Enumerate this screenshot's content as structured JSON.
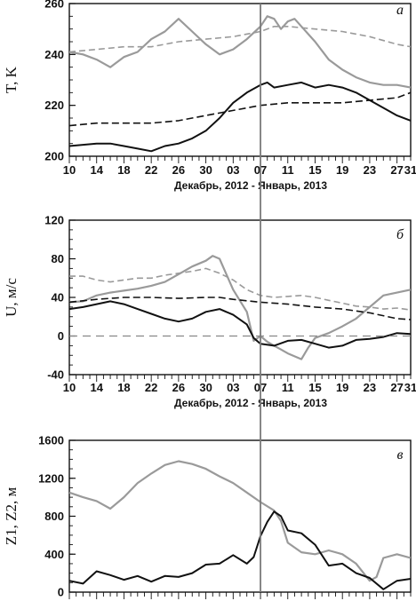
{
  "chart_data": [
    {
      "type": "line",
      "panel_label": "а",
      "ylabel": "T, K",
      "ylim": [
        200,
        260
      ],
      "yticks": [
        200,
        220,
        240,
        260
      ],
      "xtick_labels": [
        "10",
        "14",
        "18",
        "22",
        "26",
        "30",
        "03",
        "07",
        "11",
        "15",
        "19",
        "23",
        "27",
        "31"
      ],
      "xlabel": "Декабрь, 2012 - Январь, 2013",
      "event_day": 28,
      "series": [
        {
          "style": "gray-solid",
          "points": [
            [
              0,
              241
            ],
            [
              2,
              240
            ],
            [
              4,
              238
            ],
            [
              6,
              235
            ],
            [
              8,
              239
            ],
            [
              10,
              241
            ],
            [
              12,
              246
            ],
            [
              14,
              249
            ],
            [
              16,
              254
            ],
            [
              18,
              249
            ],
            [
              20,
              244
            ],
            [
              22,
              240
            ],
            [
              24,
              242
            ],
            [
              26,
              246
            ],
            [
              28,
              251
            ],
            [
              29,
              255
            ],
            [
              30,
              254
            ],
            [
              31,
              250
            ],
            [
              32,
              253
            ],
            [
              33,
              254
            ],
            [
              34,
              251
            ],
            [
              36,
              245
            ],
            [
              38,
              238
            ],
            [
              40,
              234
            ],
            [
              42,
              231
            ],
            [
              44,
              229
            ],
            [
              46,
              228
            ],
            [
              48,
              228
            ],
            [
              50,
              227
            ]
          ]
        },
        {
          "style": "gray-dashed",
          "points": [
            [
              0,
              241
            ],
            [
              4,
              242
            ],
            [
              8,
              243
            ],
            [
              12,
              243
            ],
            [
              16,
              245
            ],
            [
              20,
              246
            ],
            [
              24,
              247
            ],
            [
              28,
              249
            ],
            [
              30,
              251
            ],
            [
              32,
              251
            ],
            [
              36,
              250
            ],
            [
              40,
              249
            ],
            [
              44,
              247
            ],
            [
              48,
              244
            ],
            [
              50,
              243
            ]
          ]
        },
        {
          "style": "black-solid",
          "points": [
            [
              0,
              204
            ],
            [
              4,
              205
            ],
            [
              6,
              205
            ],
            [
              8,
              204
            ],
            [
              10,
              203
            ],
            [
              12,
              202
            ],
            [
              14,
              204
            ],
            [
              16,
              205
            ],
            [
              18,
              207
            ],
            [
              20,
              210
            ],
            [
              22,
              215
            ],
            [
              24,
              221
            ],
            [
              26,
              225
            ],
            [
              28,
              228
            ],
            [
              29,
              229
            ],
            [
              30,
              227
            ],
            [
              32,
              228
            ],
            [
              34,
              229
            ],
            [
              36,
              227
            ],
            [
              38,
              228
            ],
            [
              40,
              227
            ],
            [
              42,
              225
            ],
            [
              44,
              222
            ],
            [
              46,
              219
            ],
            [
              48,
              216
            ],
            [
              50,
              214
            ]
          ]
        },
        {
          "style": "black-dashed",
          "points": [
            [
              0,
              212
            ],
            [
              4,
              213
            ],
            [
              8,
              213
            ],
            [
              12,
              213
            ],
            [
              16,
              214
            ],
            [
              20,
              216
            ],
            [
              24,
              218
            ],
            [
              28,
              220
            ],
            [
              32,
              221
            ],
            [
              36,
              221
            ],
            [
              40,
              221
            ],
            [
              44,
              222
            ],
            [
              48,
              223
            ],
            [
              50,
              225
            ]
          ]
        }
      ]
    },
    {
      "type": "line",
      "panel_label": "б",
      "ylabel": "U, м/с",
      "ylim": [
        -40,
        120
      ],
      "yticks": [
        -40,
        0,
        40,
        80,
        120
      ],
      "xtick_labels": [
        "10",
        "14",
        "18",
        "22",
        "26",
        "30",
        "03",
        "07",
        "11",
        "15",
        "19",
        "23",
        "27",
        "31"
      ],
      "xlabel": "Декабрь, 2012 - Январь, 2013",
      "event_day": 28,
      "series": [
        {
          "style": "gray-solid",
          "points": [
            [
              0,
              35
            ],
            [
              2,
              36
            ],
            [
              4,
              42
            ],
            [
              6,
              45
            ],
            [
              8,
              47
            ],
            [
              10,
              49
            ],
            [
              12,
              52
            ],
            [
              14,
              56
            ],
            [
              16,
              64
            ],
            [
              18,
              72
            ],
            [
              20,
              78
            ],
            [
              21,
              83
            ],
            [
              22,
              80
            ],
            [
              24,
              48
            ],
            [
              26,
              25
            ],
            [
              27,
              -5
            ],
            [
              28,
              0
            ],
            [
              29,
              -6
            ],
            [
              30,
              -10
            ],
            [
              31,
              -14
            ],
            [
              32,
              -18
            ],
            [
              34,
              -24
            ],
            [
              35,
              -12
            ],
            [
              36,
              -2
            ],
            [
              38,
              3
            ],
            [
              40,
              10
            ],
            [
              42,
              18
            ],
            [
              44,
              30
            ],
            [
              46,
              42
            ],
            [
              48,
              45
            ],
            [
              50,
              48
            ]
          ]
        },
        {
          "style": "gray-dashed",
          "points": [
            [
              0,
              62
            ],
            [
              2,
              62
            ],
            [
              4,
              58
            ],
            [
              6,
              56
            ],
            [
              8,
              58
            ],
            [
              10,
              60
            ],
            [
              12,
              60
            ],
            [
              14,
              63
            ],
            [
              16,
              65
            ],
            [
              18,
              67
            ],
            [
              20,
              70
            ],
            [
              22,
              65
            ],
            [
              24,
              58
            ],
            [
              26,
              48
            ],
            [
              28,
              42
            ],
            [
              30,
              40
            ],
            [
              32,
              41
            ],
            [
              34,
              42
            ],
            [
              36,
              40
            ],
            [
              38,
              37
            ],
            [
              40,
              34
            ],
            [
              42,
              31
            ],
            [
              44,
              30
            ],
            [
              46,
              28
            ],
            [
              48,
              29
            ],
            [
              50,
              27
            ]
          ]
        },
        {
          "style": "black-solid",
          "points": [
            [
              0,
              28
            ],
            [
              2,
              30
            ],
            [
              4,
              33
            ],
            [
              6,
              36
            ],
            [
              8,
              33
            ],
            [
              10,
              28
            ],
            [
              12,
              23
            ],
            [
              14,
              18
            ],
            [
              16,
              15
            ],
            [
              18,
              18
            ],
            [
              20,
              25
            ],
            [
              22,
              28
            ],
            [
              24,
              22
            ],
            [
              26,
              12
            ],
            [
              27,
              -2
            ],
            [
              28,
              -8
            ],
            [
              30,
              -10
            ],
            [
              32,
              -5
            ],
            [
              34,
              -4
            ],
            [
              36,
              -8
            ],
            [
              38,
              -12
            ],
            [
              40,
              -10
            ],
            [
              42,
              -4
            ],
            [
              44,
              -3
            ],
            [
              46,
              -1
            ],
            [
              48,
              3
            ],
            [
              50,
              2
            ]
          ]
        },
        {
          "style": "black-dashed",
          "points": [
            [
              0,
              35
            ],
            [
              4,
              38
            ],
            [
              8,
              40
            ],
            [
              12,
              40
            ],
            [
              16,
              39
            ],
            [
              20,
              40
            ],
            [
              22,
              40
            ],
            [
              24,
              38
            ],
            [
              28,
              35
            ],
            [
              32,
              33
            ],
            [
              36,
              30
            ],
            [
              40,
              28
            ],
            [
              44,
              24
            ],
            [
              48,
              18
            ],
            [
              50,
              17
            ]
          ]
        },
        {
          "style": "gray-dashed-zero",
          "points": [
            [
              0,
              0
            ],
            [
              50,
              0
            ]
          ]
        }
      ]
    },
    {
      "type": "line",
      "panel_label": "в",
      "ylabel": "Z1, Z2, м",
      "ylim": [
        0,
        1600
      ],
      "yticks": [
        0,
        400,
        800,
        1200,
        1600
      ],
      "event_day": 28,
      "series": [
        {
          "style": "gray-solid",
          "points": [
            [
              0,
              1050
            ],
            [
              2,
              1000
            ],
            [
              4,
              960
            ],
            [
              6,
              880
            ],
            [
              8,
              1000
            ],
            [
              10,
              1150
            ],
            [
              12,
              1250
            ],
            [
              14,
              1340
            ],
            [
              16,
              1380
            ],
            [
              18,
              1350
            ],
            [
              20,
              1300
            ],
            [
              22,
              1220
            ],
            [
              24,
              1150
            ],
            [
              26,
              1050
            ],
            [
              28,
              950
            ],
            [
              30,
              860
            ],
            [
              31,
              750
            ],
            [
              32,
              520
            ],
            [
              34,
              420
            ],
            [
              36,
              400
            ],
            [
              38,
              440
            ],
            [
              40,
              400
            ],
            [
              42,
              300
            ],
            [
              44,
              120
            ],
            [
              45,
              160
            ],
            [
              46,
              360
            ],
            [
              48,
              400
            ],
            [
              50,
              360
            ]
          ]
        },
        {
          "style": "black-solid",
          "points": [
            [
              0,
              120
            ],
            [
              2,
              90
            ],
            [
              4,
              220
            ],
            [
              6,
              180
            ],
            [
              8,
              130
            ],
            [
              10,
              170
            ],
            [
              12,
              110
            ],
            [
              14,
              170
            ],
            [
              16,
              160
            ],
            [
              18,
              200
            ],
            [
              20,
              290
            ],
            [
              22,
              300
            ],
            [
              24,
              390
            ],
            [
              26,
              300
            ],
            [
              27,
              370
            ],
            [
              28,
              590
            ],
            [
              29,
              740
            ],
            [
              30,
              850
            ],
            [
              31,
              800
            ],
            [
              32,
              650
            ],
            [
              34,
              620
            ],
            [
              36,
              500
            ],
            [
              38,
              280
            ],
            [
              40,
              300
            ],
            [
              42,
              200
            ],
            [
              44,
              150
            ],
            [
              46,
              30
            ],
            [
              48,
              120
            ],
            [
              50,
              140
            ]
          ]
        }
      ]
    }
  ]
}
